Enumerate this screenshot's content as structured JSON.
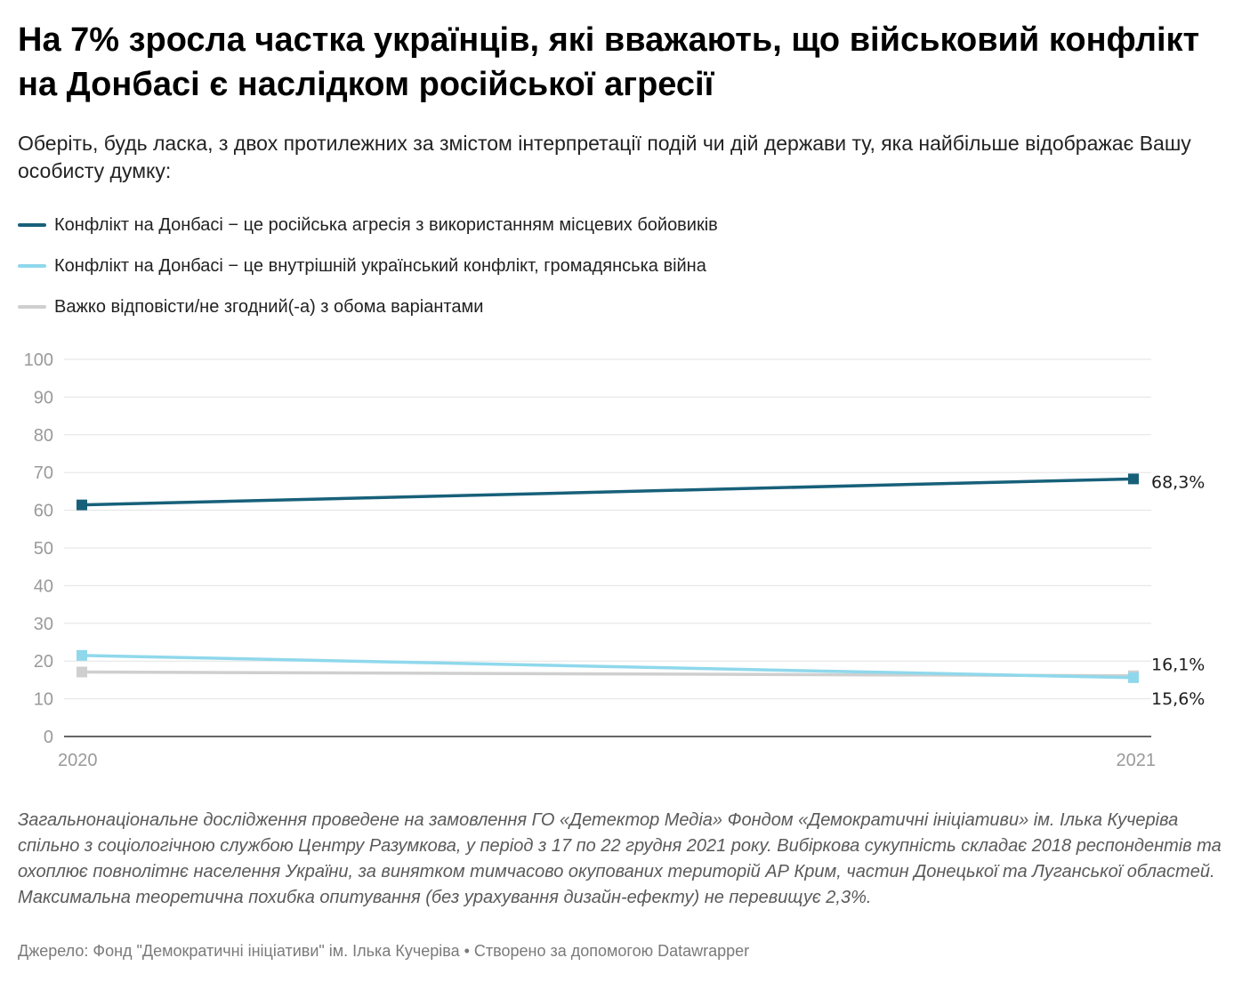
{
  "title": "На 7% зросла частка українців, які вважають, що військовий конфлікт на Донбасі є наслідком російської агресії",
  "subtitle": "Оберіть, будь ласка, з двох протилежних за змістом інтерпретації подій чи дій держави ту, яка найбільше відображає Вашу особисту думку:",
  "notes": "Загальнонаціональне дослідження проведене на замовлення ГО «Детектор Медіа» Фондом «Демократичні ініціативи» ім. Ілька Кучеріва спільно з соціологічною службою Центру Разумкова, у період з 17 по 22 грудня 2021 року. Вибіркова сукупність складає 2018 респондентів та охоплює повнолітнє населення України, за винятком тимчасово окупованих територій АР Крим, частин Донецької та Луганської областей. Максимальна теоретична похибка опитування (без урахування дизайн-ефекту) не перевищує 2,3%.",
  "source": "Джерело: Фонд \"Демократичні ініціативи\" ім. Ілька Кучеріва • Створено за допомогою Datawrapper",
  "chart_data": {
    "type": "line",
    "title": "На 7% зросла частка українців, які вважають, що військовий конфлікт на Донбасі є наслідком російської агресії",
    "x": [
      "2020",
      "2021"
    ],
    "ylim": [
      0,
      100
    ],
    "yticks": [
      0,
      10,
      20,
      30,
      40,
      50,
      60,
      70,
      80,
      90,
      100
    ],
    "grid": true,
    "legend_position": "top-left",
    "series": [
      {
        "name": "Конфлікт на Донбасі − це російська агресія з використанням місцевих бойовиків",
        "values": [
          61.4,
          68.3
        ],
        "color": "#17607a",
        "end_label": "68,3%"
      },
      {
        "name": "Конфлікт на Донбасі − це внутрішній український конфлікт, громадянська війна",
        "values": [
          21.5,
          15.6
        ],
        "color": "#8fd8ec",
        "end_label": "15,6%"
      },
      {
        "name": "Важко відповісти/не згодний(-а) з обома варіантами",
        "values": [
          17.1,
          16.1
        ],
        "color": "#cfcfcf",
        "end_label": "16,1%"
      }
    ]
  }
}
